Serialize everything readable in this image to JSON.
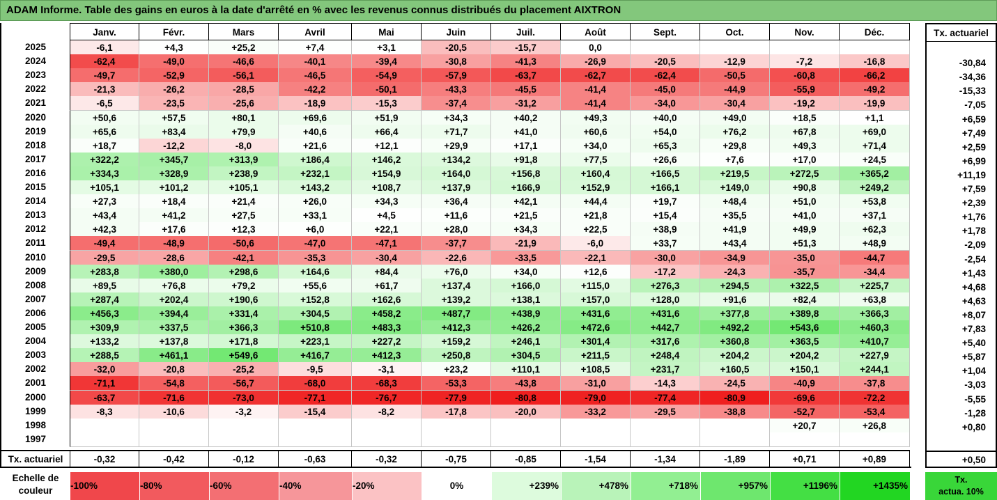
{
  "title": "ADAM Informe. Table des gains en euros à la date d'arrêté en % avec les revenus connus distribués du placement AIXTRON",
  "chart_data": {
    "type": "heatmap",
    "months": [
      "Janv.",
      "Févr.",
      "Mars",
      "Avril",
      "Mai",
      "Juin",
      "Juil.",
      "Août",
      "Sept.",
      "Oct.",
      "Nov.",
      "Déc."
    ],
    "tx_header": "Tx. actuariel",
    "rows": [
      {
        "year": "2025",
        "values": [
          "-6,1",
          "+4,3",
          "+25,2",
          "+7,4",
          "+3,1",
          "-20,5",
          "-15,7",
          "0,0",
          "",
          "",
          "",
          ""
        ],
        "tx": ""
      },
      {
        "year": "2024",
        "values": [
          "-62,4",
          "-49,0",
          "-46,6",
          "-40,1",
          "-39,4",
          "-30,8",
          "-41,3",
          "-26,9",
          "-20,5",
          "-12,9",
          "-7,2",
          "-16,8"
        ],
        "tx": "-30,84"
      },
      {
        "year": "2023",
        "values": [
          "-49,7",
          "-52,9",
          "-56,1",
          "-46,5",
          "-54,9",
          "-57,9",
          "-63,7",
          "-62,7",
          "-62,4",
          "-50,5",
          "-60,8",
          "-66,2"
        ],
        "tx": "-34,36"
      },
      {
        "year": "2022",
        "values": [
          "-21,3",
          "-26,2",
          "-28,5",
          "-42,2",
          "-50,1",
          "-43,3",
          "-45,5",
          "-41,4",
          "-45,0",
          "-44,9",
          "-55,9",
          "-49,2"
        ],
        "tx": "-15,33"
      },
      {
        "year": "2021",
        "values": [
          "-6,5",
          "-23,5",
          "-25,6",
          "-18,9",
          "-15,3",
          "-37,4",
          "-31,2",
          "-41,4",
          "-34,0",
          "-30,4",
          "-19,2",
          "-19,9"
        ],
        "tx": "-7,05"
      },
      {
        "year": "2020",
        "values": [
          "+50,6",
          "+57,5",
          "+80,1",
          "+69,6",
          "+51,9",
          "+34,3",
          "+40,2",
          "+49,3",
          "+40,0",
          "+49,0",
          "+18,5",
          "+1,1"
        ],
        "tx": "+6,59"
      },
      {
        "year": "2019",
        "values": [
          "+65,6",
          "+83,4",
          "+79,9",
          "+40,6",
          "+66,4",
          "+71,7",
          "+41,0",
          "+60,6",
          "+54,0",
          "+76,2",
          "+67,8",
          "+69,0"
        ],
        "tx": "+7,49"
      },
      {
        "year": "2018",
        "values": [
          "+18,7",
          "-12,2",
          "-8,0",
          "+21,6",
          "+12,1",
          "+29,9",
          "+17,1",
          "+34,0",
          "+65,3",
          "+29,8",
          "+49,3",
          "+71,4"
        ],
        "tx": "+2,59"
      },
      {
        "year": "2017",
        "values": [
          "+322,2",
          "+345,7",
          "+313,9",
          "+186,4",
          "+146,2",
          "+134,2",
          "+91,8",
          "+77,5",
          "+26,6",
          "+7,6",
          "+17,0",
          "+24,5"
        ],
        "tx": "+6,99"
      },
      {
        "year": "2016",
        "values": [
          "+334,3",
          "+328,9",
          "+238,9",
          "+232,1",
          "+154,9",
          "+164,0",
          "+156,8",
          "+160,4",
          "+166,5",
          "+219,5",
          "+272,5",
          "+365,2"
        ],
        "tx": "+11,19"
      },
      {
        "year": "2015",
        "values": [
          "+105,1",
          "+101,2",
          "+105,1",
          "+143,2",
          "+108,7",
          "+137,9",
          "+166,9",
          "+152,9",
          "+166,1",
          "+149,0",
          "+90,8",
          "+249,2"
        ],
        "tx": "+7,59"
      },
      {
        "year": "2014",
        "values": [
          "+27,3",
          "+18,4",
          "+21,4",
          "+26,0",
          "+34,3",
          "+36,4",
          "+42,1",
          "+44,4",
          "+19,7",
          "+48,4",
          "+51,0",
          "+53,8"
        ],
        "tx": "+2,39"
      },
      {
        "year": "2013",
        "values": [
          "+43,4",
          "+41,2",
          "+27,5",
          "+33,1",
          "+4,5",
          "+11,6",
          "+21,5",
          "+21,8",
          "+15,4",
          "+35,5",
          "+41,0",
          "+37,1"
        ],
        "tx": "+1,76"
      },
      {
        "year": "2012",
        "values": [
          "+42,3",
          "+17,6",
          "+12,3",
          "+6,0",
          "+22,1",
          "+28,0",
          "+34,3",
          "+22,5",
          "+38,9",
          "+41,9",
          "+49,9",
          "+62,3"
        ],
        "tx": "+1,78"
      },
      {
        "year": "2011",
        "values": [
          "-49,4",
          "-48,9",
          "-50,6",
          "-47,0",
          "-47,1",
          "-37,7",
          "-21,9",
          "-6,0",
          "+33,7",
          "+43,4",
          "+51,3",
          "+48,9"
        ],
        "tx": "-2,09"
      },
      {
        "year": "2010",
        "values": [
          "-29,5",
          "-28,6",
          "-42,1",
          "-35,3",
          "-30,4",
          "-22,6",
          "-33,5",
          "-22,1",
          "-30,0",
          "-34,9",
          "-35,0",
          "-44,7"
        ],
        "tx": "-2,54"
      },
      {
        "year": "2009",
        "values": [
          "+283,8",
          "+380,0",
          "+298,6",
          "+164,6",
          "+84,4",
          "+76,0",
          "+34,0",
          "+12,6",
          "-17,2",
          "-24,3",
          "-35,7",
          "-34,4"
        ],
        "tx": "+1,43"
      },
      {
        "year": "2008",
        "values": [
          "+89,5",
          "+76,8",
          "+79,2",
          "+55,6",
          "+61,7",
          "+137,4",
          "+166,0",
          "+115,0",
          "+276,3",
          "+294,5",
          "+322,5",
          "+225,7"
        ],
        "tx": "+4,68"
      },
      {
        "year": "2007",
        "values": [
          "+287,4",
          "+202,4",
          "+190,6",
          "+152,8",
          "+162,6",
          "+139,2",
          "+138,1",
          "+157,0",
          "+128,0",
          "+91,6",
          "+82,4",
          "+63,8"
        ],
        "tx": "+4,63"
      },
      {
        "year": "2006",
        "values": [
          "+456,3",
          "+394,4",
          "+331,4",
          "+304,5",
          "+458,2",
          "+487,7",
          "+438,9",
          "+431,6",
          "+431,6",
          "+377,8",
          "+389,8",
          "+366,3"
        ],
        "tx": "+8,07"
      },
      {
        "year": "2005",
        "values": [
          "+309,9",
          "+337,5",
          "+366,3",
          "+510,8",
          "+483,3",
          "+412,3",
          "+426,2",
          "+472,6",
          "+442,7",
          "+492,2",
          "+543,6",
          "+460,3"
        ],
        "tx": "+7,83"
      },
      {
        "year": "2004",
        "values": [
          "+133,2",
          "+137,8",
          "+171,8",
          "+223,1",
          "+227,2",
          "+159,2",
          "+246,1",
          "+301,4",
          "+317,6",
          "+360,8",
          "+363,5",
          "+410,7"
        ],
        "tx": "+5,40"
      },
      {
        "year": "2003",
        "values": [
          "+288,5",
          "+461,1",
          "+549,6",
          "+416,7",
          "+412,3",
          "+250,8",
          "+304,5",
          "+211,5",
          "+248,4",
          "+204,2",
          "+204,2",
          "+227,9"
        ],
        "tx": "+5,87"
      },
      {
        "year": "2002",
        "values": [
          "-32,0",
          "-20,8",
          "-25,2",
          "-9,5",
          "-3,1",
          "+23,2",
          "+110,1",
          "+108,5",
          "+231,7",
          "+160,5",
          "+150,1",
          "+244,1"
        ],
        "tx": "+1,04"
      },
      {
        "year": "2001",
        "values": [
          "-71,1",
          "-54,8",
          "-56,7",
          "-68,0",
          "-68,3",
          "-53,3",
          "-43,8",
          "-31,0",
          "-14,3",
          "-24,5",
          "-40,9",
          "-37,8"
        ],
        "tx": "-3,03"
      },
      {
        "year": "2000",
        "values": [
          "-63,7",
          "-71,6",
          "-73,0",
          "-77,1",
          "-76,7",
          "-77,9",
          "-80,8",
          "-79,0",
          "-77,4",
          "-80,9",
          "-69,6",
          "-72,2"
        ],
        "tx": "-5,55"
      },
      {
        "year": "1999",
        "values": [
          "-8,3",
          "-10,6",
          "-3,2",
          "-15,4",
          "-8,2",
          "-17,8",
          "-20,0",
          "-33,2",
          "-29,5",
          "-38,8",
          "-52,7",
          "-53,4"
        ],
        "tx": "-1,28"
      },
      {
        "year": "1998",
        "values": [
          "",
          "",
          "",
          "",
          "",
          "",
          "",
          "",
          "",
          "",
          "+20,7",
          "+26,8"
        ],
        "tx": "+0,80"
      },
      {
        "year": "1997",
        "values": [
          "",
          "",
          "",
          "",
          "",
          "",
          "",
          "",
          "",
          "",
          "",
          ""
        ],
        "tx": ""
      }
    ],
    "footer": {
      "label": "Tx. actuariel",
      "values": [
        "-0,32",
        "-0,42",
        "-0,12",
        "-0,63",
        "-0,32",
        "-0,75",
        "-0,85",
        "-1,54",
        "-1,34",
        "-1,89",
        "+0,71",
        "+0,89"
      ],
      "tx": "+0,50"
    },
    "legend": {
      "label_line1": "Echelle de",
      "label_line2": "couleur",
      "steps": [
        {
          "text": "-100%",
          "color": "#f0474b"
        },
        {
          "text": "-80%",
          "color": "#f25a5e"
        },
        {
          "text": "-60%",
          "color": "#f36f73"
        },
        {
          "text": "-40%",
          "color": "#f6969a"
        },
        {
          "text": "-20%",
          "color": "#fbc2c4"
        },
        {
          "text": "0%",
          "color": "#ffffff"
        },
        {
          "text": "+239%",
          "color": "#ddfbdd"
        },
        {
          "text": "+478%",
          "color": "#b9f3b9"
        },
        {
          "text": "+718%",
          "color": "#92ef92"
        },
        {
          "text": "+957%",
          "color": "#6ee76e"
        },
        {
          "text": "+1196%",
          "color": "#44df44"
        },
        {
          "text": "+1435%",
          "color": "#22d622"
        }
      ],
      "tx_line1": "Tx.",
      "tx_line2": "actua. 10%"
    }
  }
}
